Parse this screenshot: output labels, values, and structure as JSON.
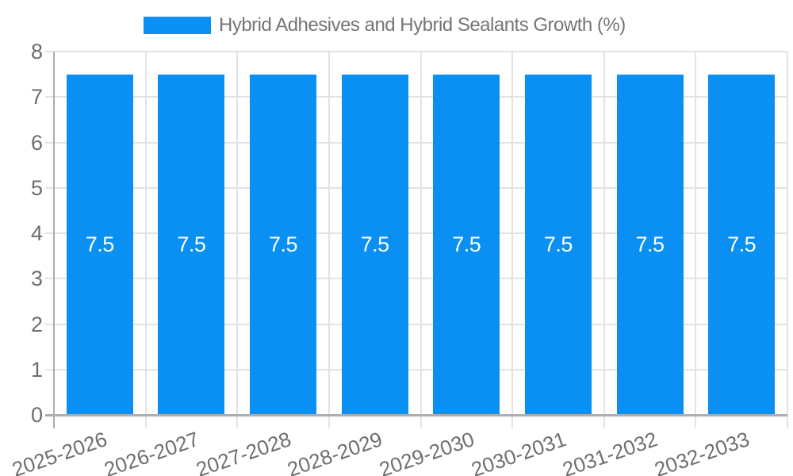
{
  "chart_data": {
    "type": "bar",
    "title": "Hybrid Adhesives and Hybrid Sealants Growth (%)",
    "legend": {
      "position": "top",
      "label": "Hybrid Adhesives and Hybrid Sealants Growth (%)"
    },
    "categories": [
      "2025-2026",
      "2026-2027",
      "2027-2028",
      "2028-2029",
      "2029-2030",
      "2030-2031",
      "2031-2032",
      "2032-2033"
    ],
    "values": [
      7.5,
      7.5,
      7.5,
      7.5,
      7.5,
      7.5,
      7.5,
      7.5
    ],
    "value_labels": [
      "7.5",
      "7.5",
      "7.5",
      "7.5",
      "7.5",
      "7.5",
      "7.5",
      "7.5"
    ],
    "xlabel": "",
    "ylabel": "",
    "ylim": [
      0,
      8
    ],
    "yticks": [
      0,
      1,
      2,
      3,
      4,
      5,
      6,
      7,
      8
    ],
    "grid": true,
    "colors": {
      "bar": "#0990f2",
      "grid": "#e3e3e3",
      "axis": "#adadad",
      "tick_text": "#6e6e6e",
      "legend_text": "#757575",
      "bar_label_text": "#ffffff",
      "background": "#ffffff"
    }
  }
}
